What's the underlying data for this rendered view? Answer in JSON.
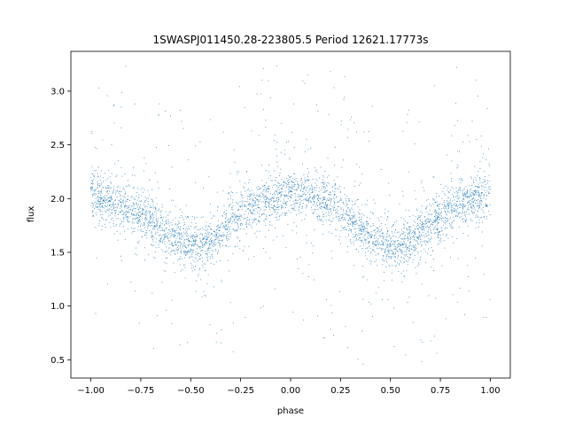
{
  "chart_data": {
    "type": "scatter",
    "title": "1SWASPJ011450.28-223805.5 Period 12621.17773s",
    "xlabel": "phase",
    "ylabel": "flux",
    "xlim": [
      -1.1,
      1.1
    ],
    "ylim": [
      0.33,
      3.37
    ],
    "x_ticks": [
      -1.0,
      -0.75,
      -0.5,
      -0.25,
      0.0,
      0.25,
      0.5,
      0.75,
      1.0
    ],
    "x_tick_labels": [
      "−1.00",
      "−0.75",
      "−0.50",
      "−0.25",
      "0.00",
      "0.25",
      "0.50",
      "0.75",
      "1.00"
    ],
    "y_ticks": [
      0.5,
      1.0,
      1.5,
      2.0,
      2.5,
      3.0
    ],
    "y_tick_labels": [
      "0.5",
      "1.0",
      "1.5",
      "2.0",
      "2.5",
      "3.0"
    ],
    "grid": false,
    "point_color": "#1f77b4",
    "series": [
      {
        "x": [
          -1.0,
          -0.9,
          -0.8,
          -0.7,
          -0.6,
          -0.5,
          -0.45,
          -0.4,
          -0.3,
          -0.2,
          -0.1,
          0.0,
          0.1,
          0.2,
          0.3,
          0.4,
          0.5,
          0.55,
          0.6,
          0.7,
          0.8,
          0.9,
          1.0
        ],
        "y": [
          2.02,
          1.98,
          1.92,
          1.8,
          1.64,
          1.56,
          1.55,
          1.6,
          1.78,
          1.93,
          2.0,
          2.05,
          2.02,
          1.95,
          1.82,
          1.65,
          1.55,
          1.54,
          1.6,
          1.76,
          1.9,
          1.98,
          2.03
        ],
        "scatter_spread": 0.1
      }
    ]
  }
}
